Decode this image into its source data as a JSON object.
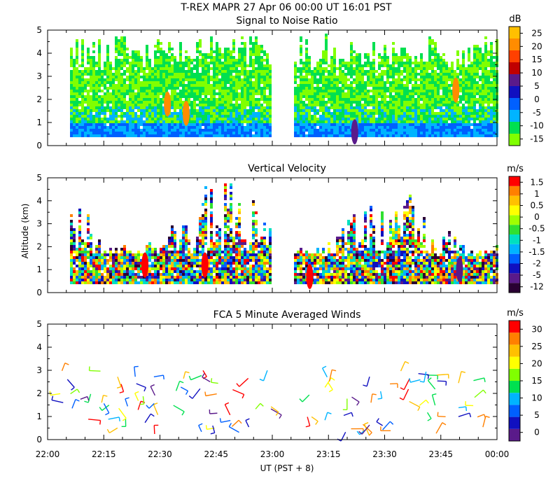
{
  "figure": {
    "title_line1": "T-REX  MAPR 27 Apr 06  00:00 UT  16:01  PST",
    "xlabel": "UT  (PST + 8)",
    "ylabel": "Altitude (km)"
  },
  "colors": {
    "snr": [
      "#80ff00",
      "#00e050",
      "#00b4ff",
      "#0060ff",
      "#1010c0",
      "#5a1a8a",
      "#c00000",
      "#ff4000",
      "#ff8c00",
      "#ffc000"
    ],
    "vv": [
      "#2a0033",
      "#5a1a8a",
      "#1010c0",
      "#0060ff",
      "#00b4ff",
      "#00e0c0",
      "#30e030",
      "#a0ff00",
      "#ffff00",
      "#ffc000",
      "#ff8000",
      "#ff0000"
    ],
    "wind": [
      "#5a1a8a",
      "#1010c0",
      "#0060ff",
      "#00b4ff",
      "#00e050",
      "#80ff00",
      "#ffff00",
      "#ffc000",
      "#ff8000",
      "#ff0000"
    ]
  },
  "chart_data": [
    {
      "type": "heatmap",
      "title": "Signal to Noise Ratio",
      "xlabel": "UT  (PST + 8)",
      "ylabel": "Altitude (km)",
      "xlim": [
        0,
        120
      ],
      "ylim": [
        0,
        5
      ],
      "data_gap_minutes": [
        60,
        66
      ],
      "colorbar_unit": "dB",
      "colorbar_ticks": [
        "25",
        "20",
        "15",
        "10",
        "5",
        "0",
        "-5",
        "-10",
        "-15"
      ],
      "features": [
        {
          "x": 32,
          "y": 1.8,
          "value": 20
        },
        {
          "x": 37,
          "y": 1.4,
          "value": 20
        },
        {
          "x": 82,
          "y": 0.6,
          "value": 10
        },
        {
          "x": 109,
          "y": 2.4,
          "value": 20
        }
      ]
    },
    {
      "type": "heatmap",
      "title": "Vertical Velocity",
      "xlabel": "UT  (PST + 8)",
      "ylabel": "Altitude (km)",
      "xlim": [
        0,
        120
      ],
      "ylim": [
        0,
        5
      ],
      "data_gap_minutes": [
        60,
        66
      ],
      "colorbar_unit": "m/s",
      "colorbar_ticks": [
        "1.5",
        "1",
        "0.5",
        "0",
        "-0.5",
        "-1",
        "-1.5",
        "-2",
        "-5",
        "-12"
      ],
      "features": [
        {
          "x": 26,
          "y": 1.2,
          "value": 1.5
        },
        {
          "x": 42,
          "y": 1.2,
          "value": 1.5
        },
        {
          "x": 70,
          "y": 0.7,
          "value": 1.5
        },
        {
          "x": 110,
          "y": 1.0,
          "value": -5
        }
      ]
    },
    {
      "type": "scatter",
      "subtype": "wind_barbs",
      "title": "FCA 5 Minute Averaged Winds",
      "xlabel": "UT  (PST + 8)",
      "ylabel": "Altitude (km)",
      "xlim": [
        0,
        120
      ],
      "ylim": [
        0,
        5
      ],
      "x_tick_labels": [
        "22:00",
        "22:15",
        "22:30",
        "22:45",
        "23:00",
        "23:15",
        "23:30",
        "23:45",
        "00:00"
      ],
      "y_tick_labels": [
        "0",
        "1",
        "2",
        "3",
        "4",
        "5"
      ],
      "colorbar_unit": "m/s",
      "colorbar_ticks": [
        "30",
        "25",
        "20",
        "15",
        "10",
        "5",
        "0"
      ],
      "x_values_minutes": [
        5,
        10,
        15,
        20,
        25,
        30,
        35,
        40,
        45,
        50,
        55,
        60,
        70,
        75,
        80,
        85,
        90,
        95,
        100,
        105,
        110,
        115
      ],
      "altitude_range_km": [
        0.2,
        3.0
      ]
    }
  ]
}
